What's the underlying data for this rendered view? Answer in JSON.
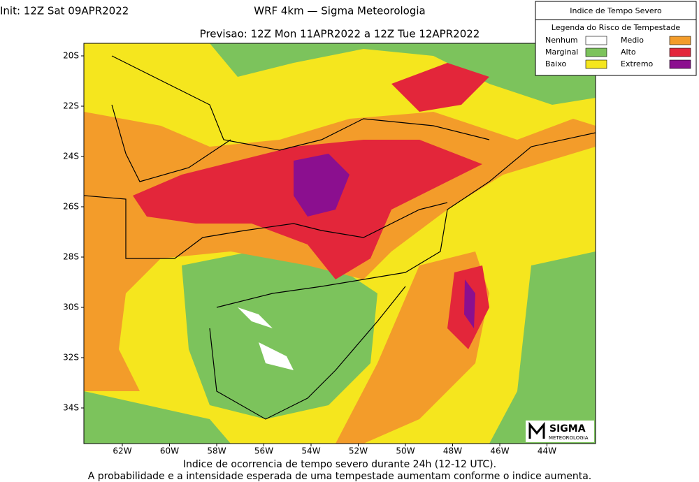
{
  "header": {
    "init": "Init: 12Z Sat 09APR2022",
    "title": "WRF 4km — Sigma Meteorologia",
    "forecast": "Previsao: 12Z Mon 11APR2022 a 12Z Tue 12APR2022"
  },
  "legend": {
    "title": "Indice de Tempo Severo",
    "subtitle": "Legenda do Risco de Tempestade",
    "items": [
      {
        "label": "Nenhum",
        "color": "#ffffff"
      },
      {
        "label": "Marginal",
        "color": "#7cc35c"
      },
      {
        "label": "Baixo",
        "color": "#f5e61e"
      },
      {
        "label": "Medio",
        "color": "#f39c2a"
      },
      {
        "label": "Alto",
        "color": "#e3263a"
      },
      {
        "label": "Extremo",
        "color": "#8b0f8f"
      }
    ]
  },
  "map": {
    "lat_labels": [
      "20S",
      "22S",
      "24S",
      "26S",
      "28S",
      "30S",
      "32S",
      "34S"
    ],
    "lon_labels": [
      "62W",
      "60W",
      "58W",
      "56W",
      "54W",
      "52W",
      "50W",
      "48W",
      "46W",
      "44W"
    ]
  },
  "logo": {
    "name": "SIGMA",
    "sub": "METEOROLOGIA"
  },
  "footer": {
    "line1": "Indice de ocorrencia de tempo severo durante 24h (12-12 UTC).",
    "line2": "A probabilidade e a intensidade esperada de uma tempestade aumentam conforme o indice aumenta."
  }
}
